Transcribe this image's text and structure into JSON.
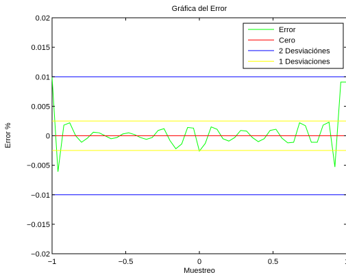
{
  "chart_data": {
    "type": "line",
    "title": "Gráfica del Error",
    "xlabel": "Muestreo",
    "ylabel": "Error %",
    "xlim": [
      -1,
      1
    ],
    "ylim": [
      -0.02,
      0.02
    ],
    "xticks": [
      -1,
      -0.5,
      0,
      0.5,
      1
    ],
    "xtick_labels": [
      "−1",
      "−0.5",
      "0",
      "0.5",
      "1"
    ],
    "yticks": [
      -0.02,
      -0.015,
      -0.01,
      -0.005,
      0,
      0.005,
      0.01,
      0.015,
      0.02
    ],
    "ytick_labels": [
      "−0.02",
      "−0.015",
      "−0.01",
      "−0.005",
      "0",
      "0.005",
      "0.01",
      "0.015",
      "0.02"
    ],
    "grid": false,
    "legend_position": "top-right",
    "series": [
      {
        "name": "Error",
        "color": "#00ff00",
        "x": [
          -1.0,
          -0.96,
          -0.92,
          -0.88,
          -0.84,
          -0.8,
          -0.76,
          -0.72,
          -0.68,
          -0.64,
          -0.6,
          -0.56,
          -0.52,
          -0.48,
          -0.44,
          -0.4,
          -0.36,
          -0.32,
          -0.28,
          -0.24,
          -0.2,
          -0.16,
          -0.12,
          -0.08,
          -0.04,
          0.0,
          0.04,
          0.08,
          0.12,
          0.16,
          0.2,
          0.24,
          0.28,
          0.32,
          0.36,
          0.4,
          0.44,
          0.48,
          0.52,
          0.56,
          0.6,
          0.64,
          0.68,
          0.72,
          0.76,
          0.8,
          0.84,
          0.88,
          0.92,
          0.96,
          1.0
        ],
        "y": [
          0.0099,
          -0.0061,
          0.0018,
          0.0022,
          0.0,
          -0.0011,
          -0.0004,
          0.0006,
          0.0005,
          0.0,
          -0.0005,
          -0.0003,
          0.0003,
          0.0005,
          0.0002,
          -0.0003,
          -0.0006,
          -0.0003,
          0.0009,
          0.0012,
          -0.0008,
          -0.0022,
          -0.0014,
          0.0014,
          0.0013,
          -0.0026,
          -0.0013,
          0.0015,
          0.0011,
          -0.0005,
          -0.0009,
          -0.0003,
          0.0009,
          0.0008,
          -0.0003,
          -0.001,
          -0.0005,
          0.0009,
          0.0011,
          -0.0004,
          -0.0012,
          -0.0011,
          0.0022,
          0.0017,
          -0.0011,
          -0.0011,
          0.0018,
          0.0023,
          -0.0053,
          0.0091,
          0.0091
        ]
      },
      {
        "name": "Cero",
        "color": "#ff0000",
        "x": [
          -1,
          1
        ],
        "y": [
          0,
          0
        ]
      },
      {
        "name": "2 Desviaciónes",
        "color": "#0000ff",
        "x": [
          -1,
          1
        ],
        "y": [
          0.01,
          0.01
        ]
      },
      {
        "name": "2 Desviaciónes",
        "color": "#0000ff",
        "x": [
          -1,
          1
        ],
        "y": [
          -0.01,
          -0.01
        ],
        "legend": false
      },
      {
        "name": "1 Desviaciones",
        "color": "#ffff00",
        "x": [
          -1,
          1
        ],
        "y": [
          0.0025,
          0.0025
        ]
      },
      {
        "name": "1 Desviaciones",
        "color": "#ffff00",
        "x": [
          -1,
          1
        ],
        "y": [
          -0.0025,
          -0.0025
        ],
        "legend": false
      }
    ],
    "legend_entries": [
      "Error",
      "Cero",
      "2 Desviaciónes",
      "1 Desviaciones"
    ]
  },
  "colors": {
    "legend": [
      "#00ff00",
      "#ff0000",
      "#0000ff",
      "#ffff00"
    ]
  }
}
